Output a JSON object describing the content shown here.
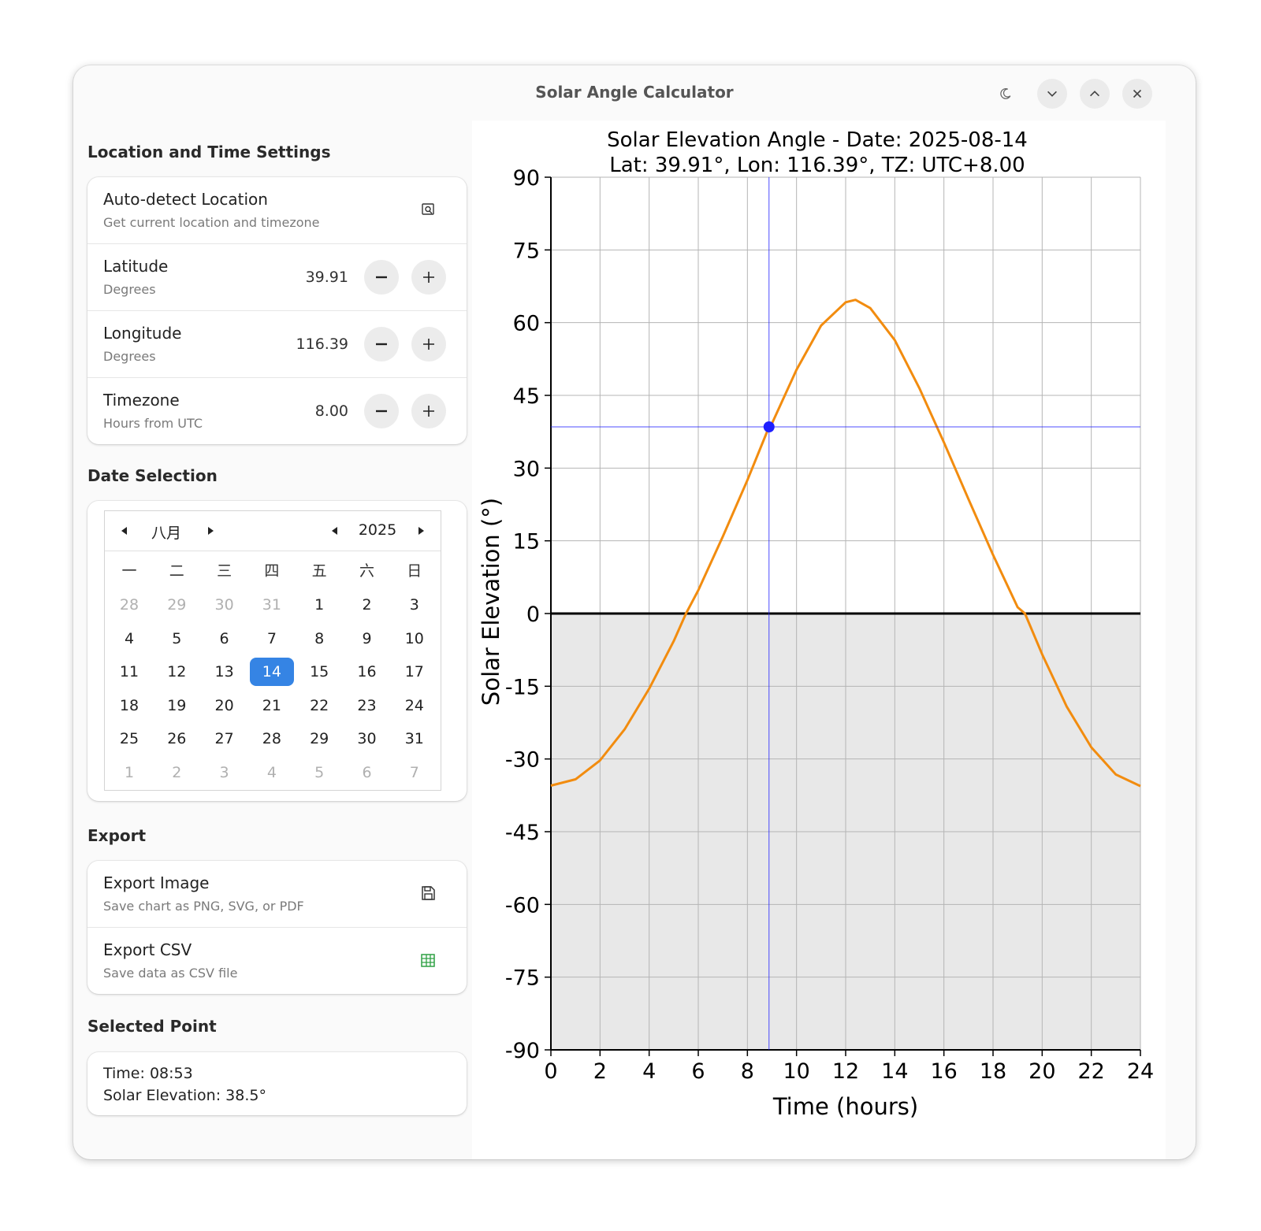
{
  "window": {
    "title": "Solar Angle Calculator"
  },
  "titlebar": {
    "icons": [
      "moon-icon",
      "chevron-down-icon",
      "chevron-up-icon",
      "close-icon"
    ]
  },
  "location": {
    "section_title": "Location and Time Settings",
    "autodetect": {
      "label": "Auto-detect Location",
      "sub": "Get current location and timezone",
      "icon": "location-search-icon"
    },
    "latitude": {
      "label": "Latitude",
      "sub": "Degrees",
      "value": "39.91"
    },
    "longitude": {
      "label": "Longitude",
      "sub": "Degrees",
      "value": "116.39"
    },
    "timezone": {
      "label": "Timezone",
      "sub": "Hours from UTC",
      "value": "8.00"
    }
  },
  "date": {
    "section_title": "Date Selection",
    "month": "八月",
    "year": "2025",
    "weekdays": [
      "一",
      "二",
      "三",
      "四",
      "五",
      "六",
      "日"
    ],
    "days": [
      [
        "28",
        "29",
        "30",
        "31",
        "1",
        "2",
        "3"
      ],
      [
        "4",
        "5",
        "6",
        "7",
        "8",
        "9",
        "10"
      ],
      [
        "11",
        "12",
        "13",
        "14",
        "15",
        "16",
        "17"
      ],
      [
        "18",
        "19",
        "20",
        "21",
        "22",
        "23",
        "24"
      ],
      [
        "25",
        "26",
        "27",
        "28",
        "29",
        "30",
        "31"
      ],
      [
        "1",
        "2",
        "3",
        "4",
        "5",
        "6",
        "7"
      ]
    ],
    "selected_day": "14"
  },
  "export": {
    "section_title": "Export",
    "image": {
      "label": "Export Image",
      "sub": "Save chart as PNG, SVG, or PDF",
      "icon": "save-icon"
    },
    "csv": {
      "label": "Export CSV",
      "sub": "Save data as CSV file",
      "icon": "table-icon"
    }
  },
  "selected_point": {
    "section_title": "Selected Point",
    "time": "Time: 08:53",
    "elevation": "Solar Elevation: 38.5°"
  },
  "colors": {
    "accent": "#3584e4",
    "curve": "#f28c0f",
    "marker": "#1f1fff",
    "night_fill": "#e8e8e8"
  },
  "chart_data": {
    "type": "line",
    "title": "Solar Elevation Angle - Date: 2025-08-14",
    "subtitle": "Lat: 39.91°, Lon: 116.39°, TZ: UTC+8.00",
    "xlabel": "Time (hours)",
    "ylabel": "Solar Elevation (°)",
    "xlim": [
      0,
      24
    ],
    "ylim": [
      -90,
      90
    ],
    "xticks": [
      0,
      2,
      4,
      6,
      8,
      10,
      12,
      14,
      16,
      18,
      20,
      22,
      24
    ],
    "yticks": [
      90,
      75,
      60,
      45,
      30,
      15,
      0,
      -15,
      -30,
      -45,
      -60,
      -75,
      -90
    ],
    "grid": true,
    "series": [
      {
        "x": [
          0,
          1,
          2,
          3,
          4,
          5,
          5.5,
          6,
          7,
          8,
          8.88,
          9,
          10,
          11,
          12,
          12.4,
          13,
          14,
          15,
          16,
          17,
          18,
          19,
          19.3,
          20,
          21,
          22,
          23,
          24
        ],
        "y": [
          -35.5,
          -34.2,
          -30.3,
          -23.9,
          -15.5,
          -5.7,
          0,
          4.8,
          15.9,
          27.5,
          38.5,
          39.2,
          50.3,
          59.4,
          64.2,
          64.7,
          63.0,
          56.4,
          46.5,
          35.3,
          23.6,
          12.1,
          1.3,
          0,
          -8.4,
          -19.2,
          -27.6,
          -33.2,
          -35.6
        ]
      }
    ],
    "selected_point": {
      "x": 8.88,
      "y": 38.5
    }
  }
}
